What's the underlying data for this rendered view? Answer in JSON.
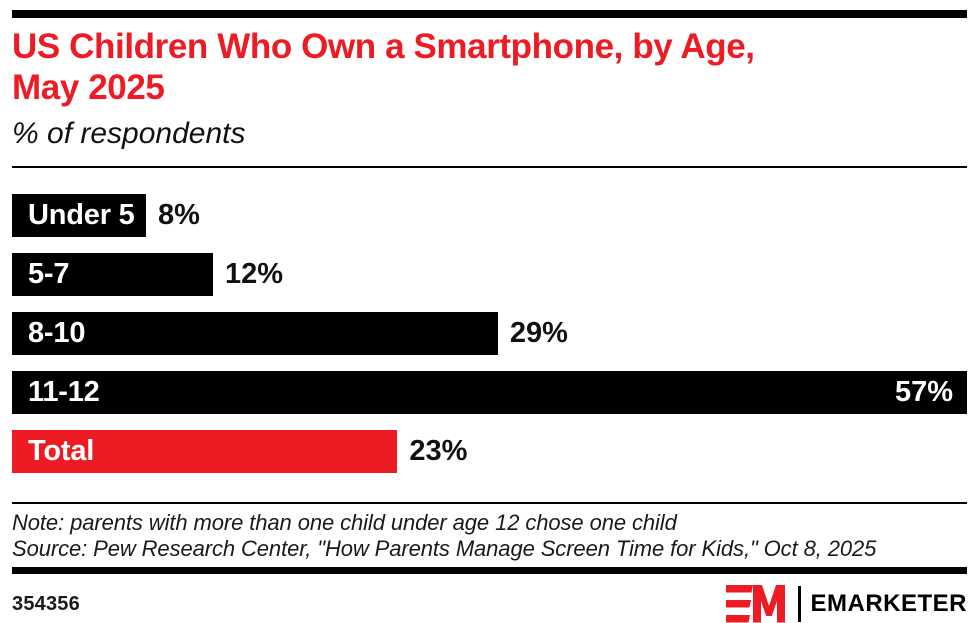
{
  "header": {
    "title_line1": "US Children Who Own a Smartphone, by Age,",
    "title_line2": "May 2025",
    "subtitle": "% of respondents"
  },
  "chart_data": {
    "type": "bar",
    "orientation": "horizontal",
    "title": "US Children Who Own a Smartphone, by Age, May 2025",
    "subtitle": "% of respondents",
    "categories": [
      "Under 5",
      "5-7",
      "8-10",
      "11-12",
      "Total"
    ],
    "values": [
      8,
      12,
      29,
      57,
      23
    ],
    "value_labels": [
      "8%",
      "12%",
      "29%",
      "57%",
      "23%"
    ],
    "xlim": [
      0,
      57
    ],
    "bar_colors": [
      "#000000",
      "#000000",
      "#000000",
      "#000000",
      "#ED1B24"
    ],
    "value_label_inside": [
      false,
      false,
      false,
      true,
      false
    ],
    "grid": false,
    "legend": false
  },
  "colors": {
    "accent_red": "#ED1B24",
    "bar_black": "#000000",
    "text": "#111111"
  },
  "footer": {
    "note": "Note: parents with more than one child under age 12 chose one child",
    "source": "Source: Pew Research Center, \"How Parents Manage Screen Time for Kids,\" Oct 8, 2025",
    "chart_id": "354356",
    "logo_text": "EMARKETER"
  }
}
